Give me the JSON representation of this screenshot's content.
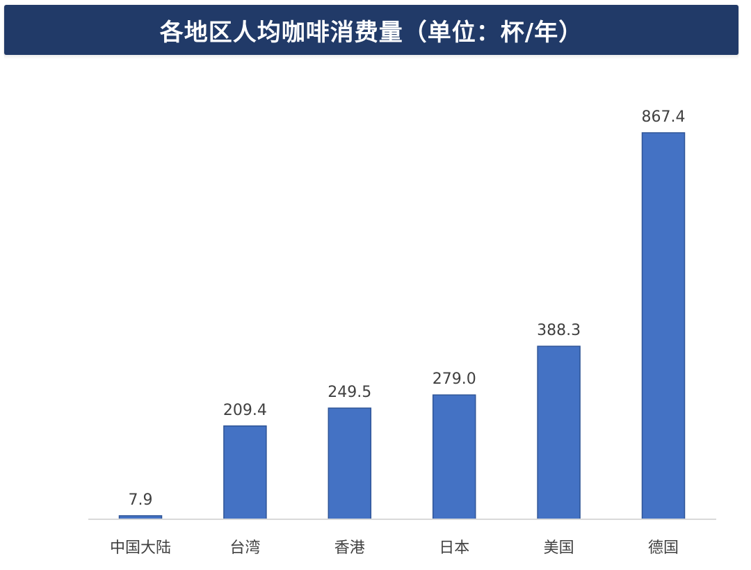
{
  "chart_data": {
    "type": "bar",
    "title": "各地区人均咖啡消费量（单位：杯/年）",
    "categories": [
      "中国大陆",
      "台湾",
      "香港",
      "日本",
      "美国",
      "德国"
    ],
    "values": [
      7.9,
      209.4,
      249.5,
      279.0,
      388.3,
      867.4
    ],
    "value_labels": [
      "7.9",
      "209.4",
      "249.5",
      "279.0",
      "388.3",
      "867.4"
    ],
    "xlabel": "",
    "ylabel": "",
    "ylim": [
      0,
      867.4
    ],
    "grid": false,
    "legend": "none",
    "bar_color": "#4472c4",
    "bar_edge_color": "#2f5597",
    "title_bg_color": "#213a68"
  }
}
